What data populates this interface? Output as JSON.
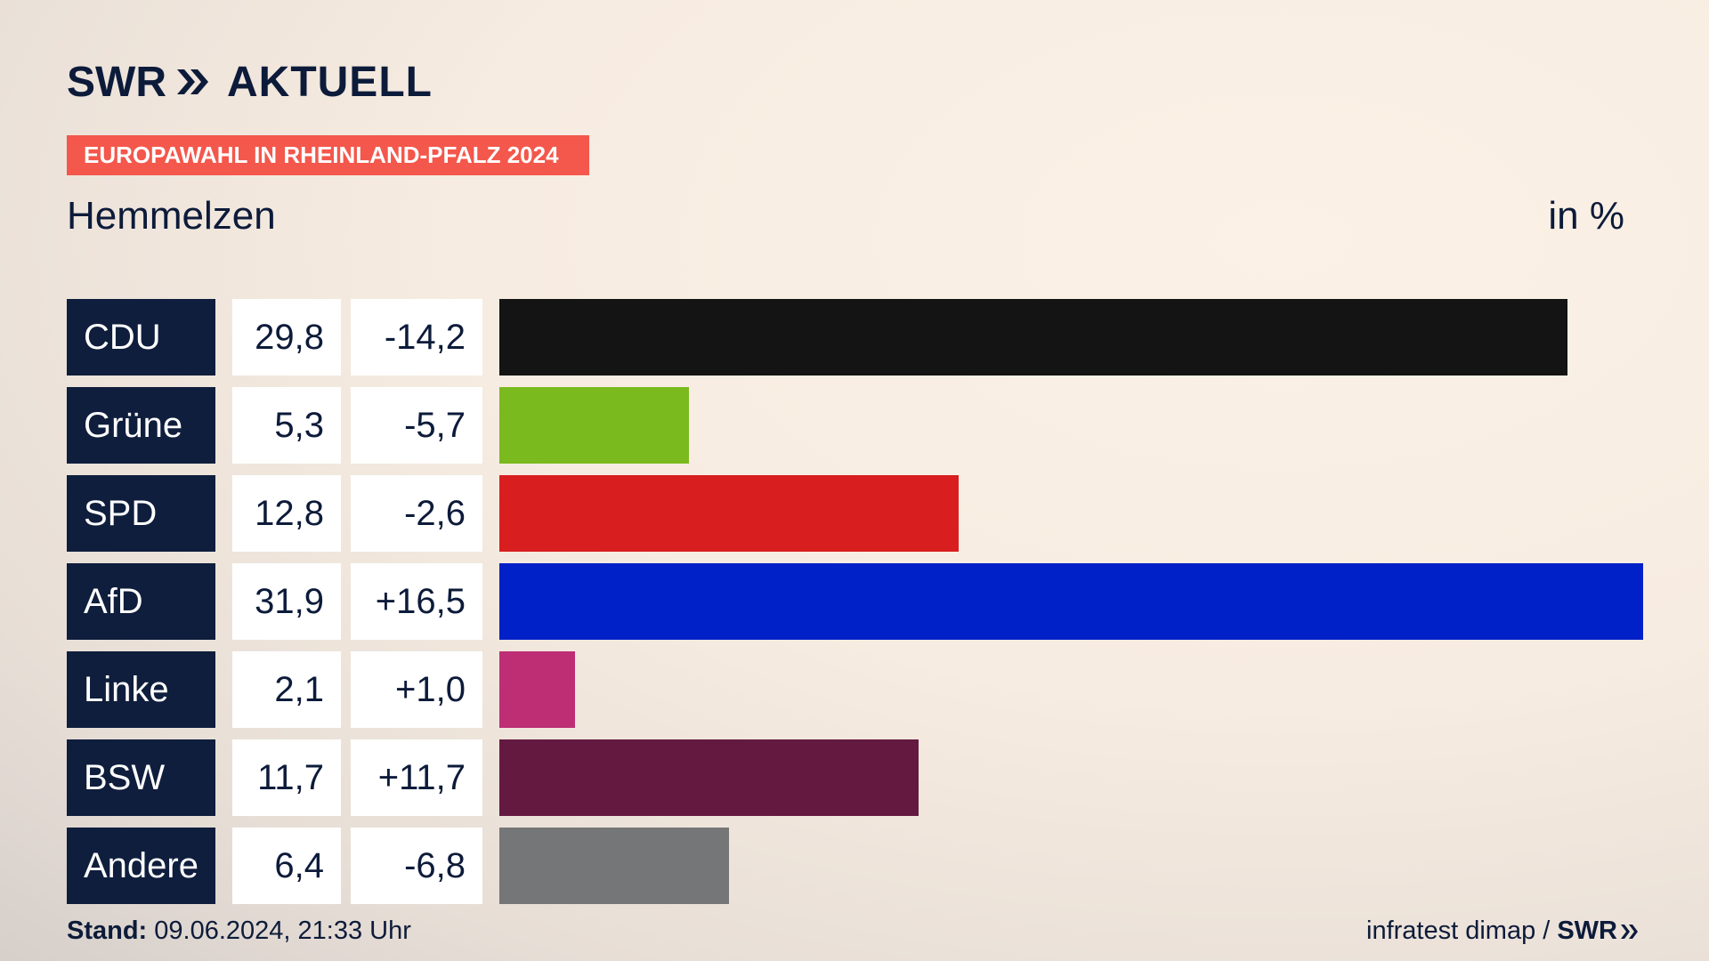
{
  "header": {
    "logo_word1": "SWR",
    "logo_word2": "AKTUELL",
    "badge": "EUROPAWAHL IN RHEINLAND-PFALZ 2024",
    "place": "Hemmelzen",
    "unit": "in %"
  },
  "chart_data": {
    "type": "bar",
    "orientation": "horizontal",
    "categories": [
      "CDU",
      "Grüne",
      "SPD",
      "AfD",
      "Linke",
      "BSW",
      "Andere"
    ],
    "values": [
      29.8,
      5.3,
      12.8,
      31.9,
      2.1,
      11.7,
      6.4
    ],
    "value_labels": [
      "29,8",
      "5,3",
      "12,8",
      "31,9",
      "2,1",
      "11,7",
      "6,4"
    ],
    "diff_labels": [
      "-14,2",
      "-5,7",
      "-2,6",
      "+16,5",
      "+1,0",
      "+11,7",
      "-6,8"
    ],
    "colors": [
      "#141414",
      "#7aba1e",
      "#d81e1e",
      "#0020c8",
      "#bd2e74",
      "#641a40",
      "#757677"
    ]
  },
  "rows": [
    {
      "party": "CDU",
      "value": "29,8",
      "diff": "-14,2"
    },
    {
      "party": "Grüne",
      "value": "5,3",
      "diff": "-5,7"
    },
    {
      "party": "SPD",
      "value": "12,8",
      "diff": "-2,6"
    },
    {
      "party": "AfD",
      "value": "31,9",
      "diff": "+16,5"
    },
    {
      "party": "Linke",
      "value": "2,1",
      "diff": "+1,0"
    },
    {
      "party": "BSW",
      "value": "11,7",
      "diff": "+11,7"
    },
    {
      "party": "Andere",
      "value": "6,4",
      "diff": "-6,8"
    }
  ],
  "footer": {
    "stand_label": "Stand:",
    "stand_value": "09.06.2024, 21:33 Uhr",
    "source": "infratest dimap /",
    "source_logo": "SWR"
  }
}
